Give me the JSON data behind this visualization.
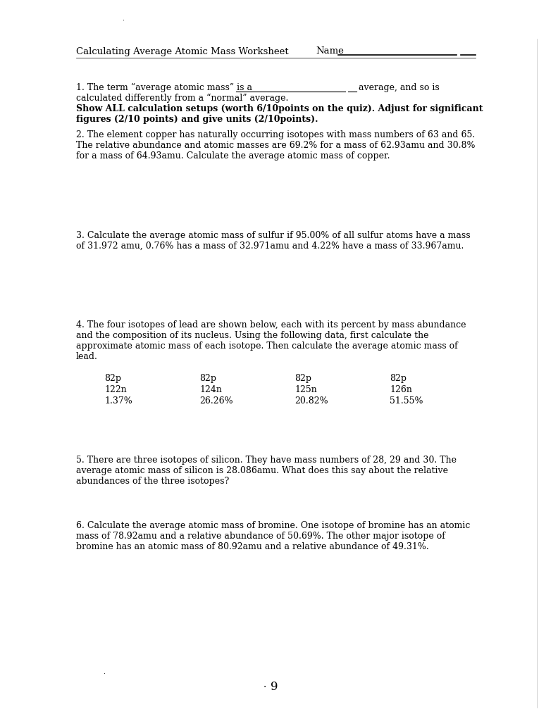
{
  "bg_color": "#ffffff",
  "title": "Calculating Average Atomic Mass Worksheet",
  "name_label": "Name",
  "header_fontsize": 9.5,
  "body_fontsize": 9.0,
  "bold_fontsize": 9.0,
  "q4_cols": [
    [
      "82p",
      "122n",
      "1.37%"
    ],
    [
      "82p",
      "124n",
      "26.26%"
    ],
    [
      "82p",
      "125n",
      "20.82%"
    ],
    [
      "82p",
      "126n",
      "51.55%"
    ]
  ],
  "page_num": "9"
}
